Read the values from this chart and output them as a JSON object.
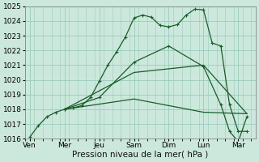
{
  "xlabel": "Pression niveau de la mer( hPa )",
  "background_color": "#cce8dc",
  "grid_color": "#99ccbb",
  "line_color": "#1a5c2a",
  "ylim": [
    1016,
    1025
  ],
  "yticks": [
    1016,
    1017,
    1018,
    1019,
    1020,
    1021,
    1022,
    1023,
    1024,
    1025
  ],
  "day_labels": [
    "Ven",
    "Mer",
    "Jeu",
    "Sam",
    "Dim",
    "Lun",
    "Mar"
  ],
  "day_positions": [
    0,
    8,
    16,
    24,
    32,
    40,
    48
  ],
  "xlim": [
    -1,
    52
  ],
  "minor_xtick_step": 2,
  "series": [
    {
      "x": [
        0,
        2,
        4,
        6,
        8,
        10,
        12,
        14,
        16,
        18,
        20,
        22,
        24,
        26,
        28,
        30,
        32,
        34,
        36,
        38,
        40,
        42,
        44,
        46,
        48,
        50
      ],
      "y": [
        1016.1,
        1016.9,
        1017.5,
        1017.8,
        1018.0,
        1018.1,
        1018.25,
        1018.8,
        1019.9,
        1021.0,
        1021.9,
        1022.9,
        1024.2,
        1024.4,
        1024.25,
        1023.7,
        1023.6,
        1023.75,
        1024.4,
        1024.8,
        1024.75,
        1022.5,
        1022.3,
        1018.3,
        1016.5,
        1016.5
      ],
      "marker": "+"
    },
    {
      "x": [
        8,
        24,
        40,
        50
      ],
      "y": [
        1018.0,
        1020.5,
        1021.0,
        1017.7
      ],
      "marker": null
    },
    {
      "x": [
        8,
        24,
        40,
        50
      ],
      "y": [
        1018.0,
        1018.7,
        1017.8,
        1017.7
      ],
      "marker": null
    },
    {
      "x": [
        8,
        16,
        24,
        32,
        40,
        44,
        46,
        48,
        50
      ],
      "y": [
        1018.0,
        1018.8,
        1021.2,
        1022.3,
        1020.9,
        1018.3,
        1016.5,
        1015.8,
        1017.5
      ],
      "marker": "+"
    }
  ]
}
